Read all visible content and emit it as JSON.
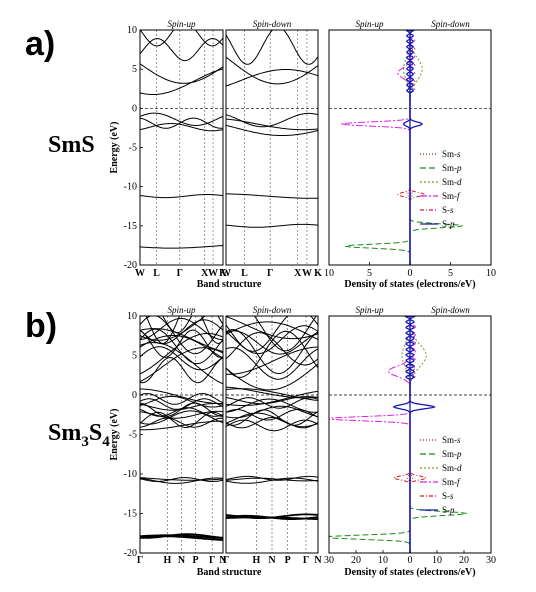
{
  "figure": {
    "panels": [
      {
        "tag": "a)",
        "material": "SmS",
        "material_sub": [
          {
            "t": "SmS",
            "sub": false
          }
        ],
        "band": {
          "ylabel": "Energy (eV)",
          "xlabel": "Band structure",
          "ylim": [
            -20,
            10
          ],
          "yticks": [
            "10",
            "5",
            "0",
            "-5",
            "-10",
            "-15",
            "-20"
          ],
          "spin_up_title": "Spin-up",
          "spin_down_title": "Spin-down",
          "kpoints": [
            "W",
            "L",
            "Γ",
            "X",
            "W",
            "K"
          ],
          "kpos": [
            0,
            0.2,
            0.48,
            0.78,
            0.88,
            1.0
          ]
        },
        "dos": {
          "xlabel": "Density of states (electrons/eV)",
          "xlim": [
            -10,
            10
          ],
          "xticks": [
            "10",
            "5",
            "0",
            "5",
            "10"
          ],
          "spin_up_title": "Spin-up",
          "spin_down_title": "Spin-down"
        }
      },
      {
        "tag": "b)",
        "material": "Sm3S4",
        "material_sub": [
          {
            "t": "Sm",
            "sub": false
          },
          {
            "t": "3",
            "sub": true
          },
          {
            "t": "S",
            "sub": false
          },
          {
            "t": "4",
            "sub": true
          }
        ],
        "band": {
          "ylabel": "Energy (eV)",
          "xlabel": "Band structure",
          "ylim": [
            -20,
            10
          ],
          "yticks": [
            "10",
            "5",
            "0",
            "-5",
            "-10",
            "-15",
            "-20"
          ],
          "spin_up_title": "Spin-up",
          "spin_down_title": "Spin-down",
          "kpoints": [
            "Γ",
            "H",
            "N",
            "P",
            "Γ",
            "N"
          ],
          "kpos": [
            0,
            0.33,
            0.5,
            0.67,
            0.87,
            1.0
          ]
        },
        "dos": {
          "xlabel": "Density of states (electrons/eV)",
          "xlim": [
            -30,
            30
          ],
          "xticks": [
            "30",
            "20",
            "10",
            "0",
            "10",
            "20",
            "30"
          ],
          "spin_up_title": "Spin-up",
          "spin_down_title": "Spin-down"
        }
      }
    ],
    "legend": [
      {
        "base": "Sm-",
        "it": "s",
        "color": "#b22222",
        "dash": "1,2"
      },
      {
        "base": "Sm-",
        "it": "p",
        "color": "#1a8a1a",
        "dash": "6,3"
      },
      {
        "base": "Sm-",
        "it": "d",
        "color": "#7a9a1a",
        "dash": "2,2"
      },
      {
        "base": "Sm-",
        "it": "f",
        "color": "#e020e0",
        "dash": "7,2,2,2"
      },
      {
        "base": "S-",
        "it": "s",
        "color": "#d02020",
        "dash": "4,2,1,2"
      },
      {
        "base": "S-",
        "it": "p",
        "color": "#1a1ab0",
        "dash": ""
      }
    ]
  },
  "chart_data": [
    {
      "type": "line",
      "panel": "a) SmS band structure",
      "ylabel": "Energy (eV)",
      "xlabel": "Band structure",
      "ylim": [
        -20,
        10
      ],
      "kpoints": [
        "W",
        "L",
        "Γ",
        "X",
        "W",
        "K"
      ],
      "series": [
        {
          "name": "Spin-up",
          "bands_approx_eV": [
            -17.6,
            -11.2,
            -2.4,
            -1.9,
            -1.4,
            3.5,
            5.5,
            7.5,
            9.5
          ]
        },
        {
          "name": "Spin-down",
          "bands_approx_eV": [
            -15.0,
            -11.2,
            -2.5,
            -2.0,
            -1.5,
            3.5,
            6.0,
            8.0
          ]
        }
      ]
    },
    {
      "type": "line",
      "panel": "a) SmS DOS",
      "xlabel": "Density of states (electrons/eV)",
      "ylabel": "Energy (eV)",
      "xlim": [
        -10,
        10
      ],
      "ylim": [
        -20,
        10
      ],
      "series": [
        {
          "name": "Sm-s",
          "peaks": [
            {
              "e": -11,
              "up": 0.3,
              "down": 0.3
            }
          ]
        },
        {
          "name": "Sm-p",
          "peaks": [
            {
              "e": -17.6,
              "up": 8,
              "down": 0
            },
            {
              "e": -15,
              "up": 0,
              "down": 6.5
            }
          ]
        },
        {
          "name": "Sm-d",
          "peaks": [
            {
              "e": 5,
              "up": 0.8,
              "down": 1.5
            }
          ]
        },
        {
          "name": "Sm-f",
          "peaks": [
            {
              "e": -2,
              "up": 8.5,
              "down": 0
            },
            {
              "e": 4.5,
              "up": 1.5,
              "down": 0
            }
          ]
        },
        {
          "name": "S-s",
          "peaks": [
            {
              "e": -11,
              "up": 1.5,
              "down": 1.8
            }
          ]
        },
        {
          "name": "S-p",
          "peaks": [
            {
              "e": -2,
              "up": 0.8,
              "down": 1.5
            }
          ]
        }
      ]
    },
    {
      "type": "line",
      "panel": "b) Sm3S4 band structure",
      "ylabel": "Energy (eV)",
      "xlabel": "Band structure",
      "ylim": [
        -20,
        10
      ],
      "kpoints": [
        "Γ",
        "H",
        "N",
        "P",
        "Γ",
        "N"
      ],
      "series": [
        {
          "name": "Spin-up",
          "bands_approx_eV": [
            -18.0,
            -10.7,
            -3.5,
            -2.5,
            -1.5,
            -0.5,
            3.5,
            5.0,
            6.5,
            8.0,
            9.5
          ]
        },
        {
          "name": "Spin-down",
          "bands_approx_eV": [
            -15.5,
            -10.7,
            -3.5,
            -2.5,
            -1.0,
            0,
            4.0,
            5.5,
            7.0,
            8.5
          ]
        }
      ]
    },
    {
      "type": "line",
      "panel": "b) Sm3S4 DOS",
      "xlabel": "Density of states (electrons/eV)",
      "ylabel": "Energy (eV)",
      "xlim": [
        -30,
        30
      ],
      "ylim": [
        -20,
        10
      ],
      "series": [
        {
          "name": "Sm-s",
          "peaks": [
            {
              "e": -10.5,
              "up": 1,
              "down": 1
            }
          ]
        },
        {
          "name": "Sm-p",
          "peaks": [
            {
              "e": -18,
              "up": 32,
              "down": 0
            },
            {
              "e": -15,
              "up": 0,
              "down": 21
            }
          ]
        },
        {
          "name": "Sm-d",
          "peaks": [
            {
              "e": 5,
              "up": 3,
              "down": 6
            }
          ]
        },
        {
          "name": "Sm-f",
          "peaks": [
            {
              "e": -3,
              "up": 31,
              "down": 0
            },
            {
              "e": 3,
              "up": 8,
              "down": 0
            }
          ]
        },
        {
          "name": "S-s",
          "peaks": [
            {
              "e": -10.5,
              "up": 6,
              "down": 6
            }
          ]
        },
        {
          "name": "S-p",
          "peaks": [
            {
              "e": -1.5,
              "up": 6,
              "down": 9
            }
          ]
        }
      ]
    }
  ]
}
